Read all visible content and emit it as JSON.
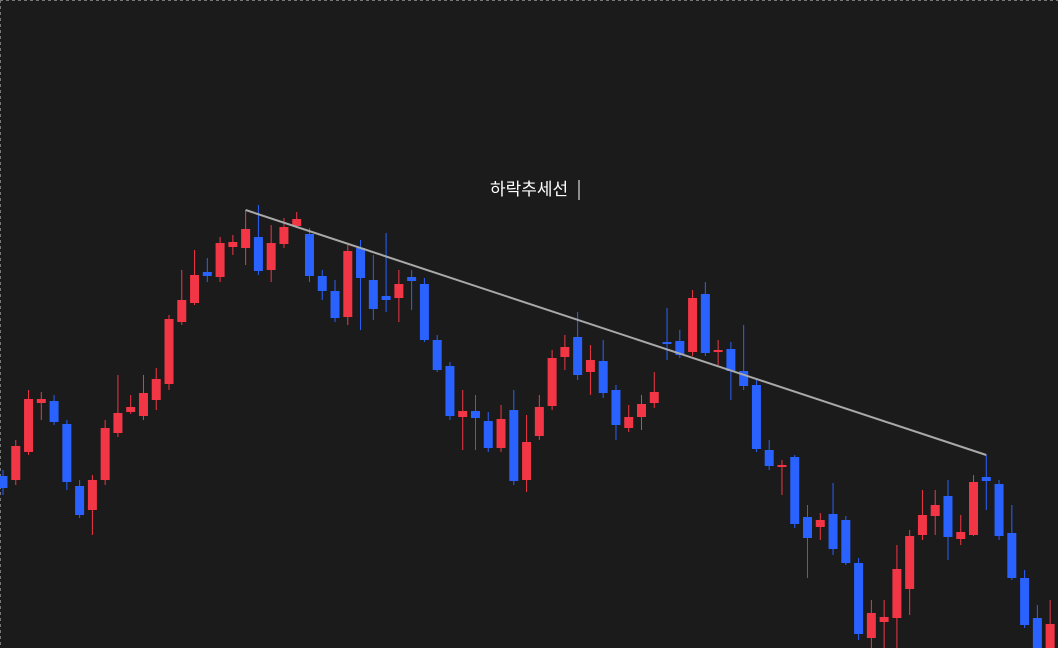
{
  "chart_data": {
    "type": "candlestick",
    "annotation": "하락추세선",
    "ylim": [
      0,
      648
    ],
    "up_color": "#f23645",
    "down_color": "#2962ff",
    "trendline_color": "#a9a9a9",
    "open": [
      172,
      168,
      196,
      245,
      247,
      224,
      162,
      138,
      168,
      215,
      236,
      232,
      248,
      264,
      326,
      345,
      376,
      371,
      401,
      400,
      411,
      378,
      404,
      422,
      414,
      372,
      357,
      331,
      400,
      368,
      352,
      350,
      371,
      364,
      308,
      282,
      231,
      237,
      227,
      200,
      238,
      168,
      212,
      242,
      291,
      311,
      276,
      287,
      258,
      220,
      231,
      245,
      306,
      307,
      296,
      354,
      296,
      299,
      277,
      263,
      198,
      181,
      191,
      131,
      121,
      134,
      128,
      85,
      10,
      26,
      30,
      59,
      113,
      132,
      152,
      109,
      113,
      171,
      164,
      115,
      70,
      30,
      0
    ],
    "high": [
      178,
      208,
      258,
      256,
      253,
      228,
      168,
      173,
      228,
      273,
      253,
      273,
      280,
      333,
      378,
      398,
      390,
      411,
      413,
      438,
      443,
      423,
      430,
      436,
      420,
      378,
      368,
      403,
      408,
      393,
      415,
      378,
      378,
      370,
      313,
      286,
      258,
      253,
      236,
      243,
      258,
      233,
      253,
      298,
      313,
      336,
      303,
      308,
      263,
      243,
      253,
      276,
      340,
      318,
      358,
      366,
      308,
      306,
      323,
      268,
      208,
      188,
      193,
      143,
      135,
      165,
      132,
      90,
      48,
      48,
      103,
      118,
      158,
      158,
      168,
      133,
      173,
      193,
      168,
      143,
      78,
      43,
      48
    ],
    "low": [
      153,
      163,
      193,
      228,
      223,
      158,
      130,
      113,
      163,
      211,
      234,
      228,
      238,
      258,
      323,
      343,
      366,
      366,
      393,
      383,
      373,
      366,
      400,
      420,
      366,
      348,
      326,
      323,
      318,
      328,
      336,
      326,
      338,
      306,
      276,
      228,
      198,
      198,
      196,
      196,
      163,
      156,
      208,
      238,
      278,
      268,
      253,
      250,
      208,
      216,
      218,
      240,
      288,
      290,
      292,
      292,
      283,
      248,
      258,
      196,
      178,
      153,
      120,
      70,
      108,
      93,
      83,
      8,
      0,
      0,
      0,
      33,
      108,
      113,
      88,
      103,
      112,
      138,
      108,
      68,
      20,
      0,
      0
    ],
    "close": [
      160,
      202,
      249,
      249,
      226,
      166,
      133,
      168,
      220,
      235,
      241,
      255,
      269,
      329,
      348,
      373,
      372,
      405,
      406,
      419,
      377,
      405,
      421,
      429,
      372,
      357,
      330,
      397,
      370,
      339,
      348,
      364,
      367,
      308,
      278,
      232,
      237,
      230,
      200,
      229,
      167,
      206,
      241,
      290,
      301,
      273,
      288,
      255,
      223,
      231,
      244,
      256,
      304,
      293,
      350,
      295,
      298,
      277,
      262,
      199,
      182,
      183,
      124,
      110,
      128,
      99,
      85,
      14,
      35,
      31,
      79,
      112,
      133,
      143,
      111,
      116,
      166,
      167,
      112,
      70,
      23,
      0,
      24
    ],
    "trendline": {
      "start": {
        "index": 19,
        "value": 438
      },
      "end": {
        "index": 77,
        "value": 193
      }
    }
  }
}
